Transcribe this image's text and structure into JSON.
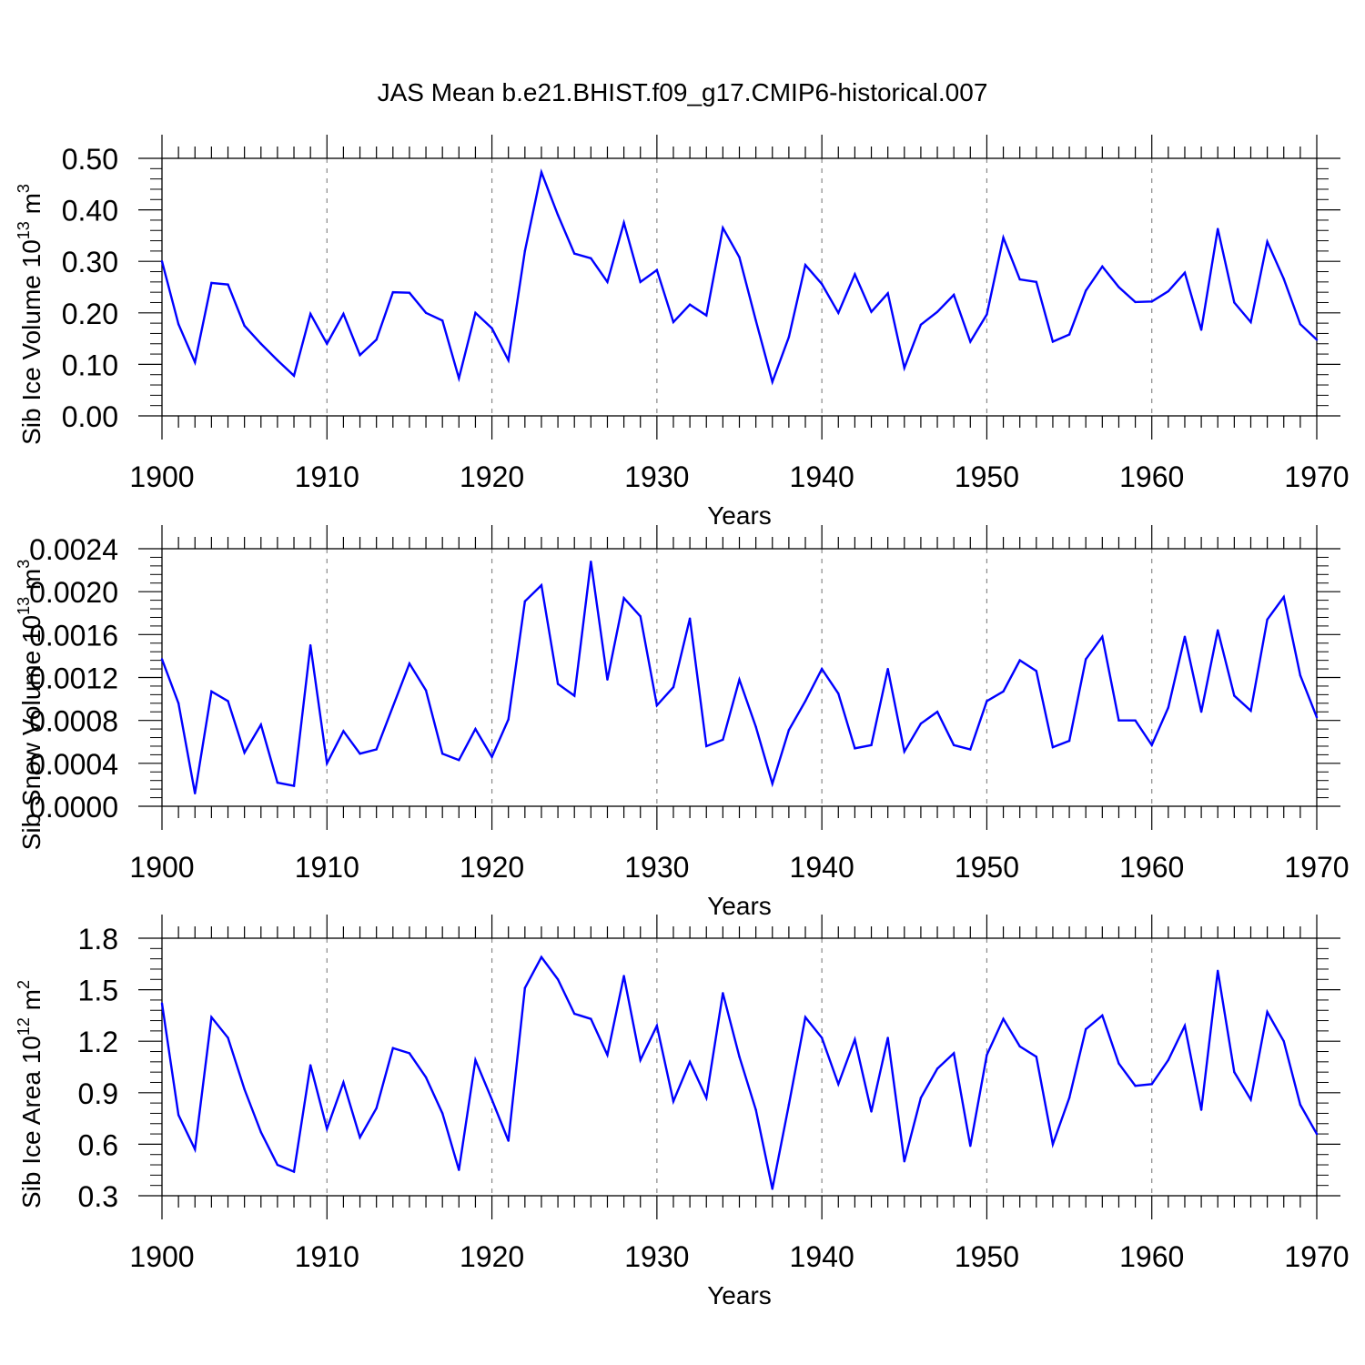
{
  "title": "JAS Mean b.e21.BHIST.f09_g17.CMIP6-historical.007",
  "colors": {
    "line": "#0000ff",
    "axis": "#000000",
    "grid": "#888888",
    "background": "#ffffff"
  },
  "chart_data": [
    {
      "type": "line",
      "ylabel_main": "Sib Ice Volume 10",
      "ylabel_exp": "13",
      "ylabel_unit": " m",
      "ylabel_unit_exp": "3",
      "xlabel": "Years",
      "xlim": [
        1900,
        1970
      ],
      "ylim": [
        0.0,
        0.5
      ],
      "yticks": [
        0.0,
        0.1,
        0.2,
        0.3,
        0.4,
        0.5
      ],
      "yticklabels": [
        "0.00",
        "0.10",
        "0.20",
        "0.30",
        "0.40",
        "0.50"
      ],
      "xticks": [
        1900,
        1910,
        1920,
        1930,
        1940,
        1950,
        1960,
        1970
      ],
      "xticklabels": [
        "1900",
        "1910",
        "1920",
        "1930",
        "1940",
        "1950",
        "1960",
        "1970"
      ],
      "grid_x": [
        1910,
        1920,
        1930,
        1940,
        1950,
        1960
      ],
      "series": [
        {
          "name": "Sib Ice Volume",
          "x_start": 1900,
          "values": [
            0.3,
            0.178,
            0.104,
            0.258,
            0.255,
            0.175,
            0.14,
            0.108,
            0.078,
            0.198,
            0.14,
            0.198,
            0.118,
            0.148,
            0.24,
            0.239,
            0.2,
            0.185,
            0.073,
            0.2,
            0.17,
            0.108,
            0.32,
            0.473,
            0.39,
            0.315,
            0.306,
            0.26,
            0.375,
            0.26,
            0.283,
            0.182,
            0.216,
            0.195,
            0.365,
            0.308,
            0.185,
            0.066,
            0.153,
            0.293,
            0.256,
            0.2,
            0.275,
            0.202,
            0.238,
            0.093,
            0.177,
            0.202,
            0.235,
            0.144,
            0.197,
            0.346,
            0.265,
            0.26,
            0.144,
            0.158,
            0.243,
            0.29,
            0.25,
            0.221,
            0.222,
            0.242,
            0.278,
            0.167,
            0.363,
            0.22,
            0.182,
            0.338,
            0.266,
            0.178,
            0.148
          ]
        }
      ]
    },
    {
      "type": "line",
      "ylabel_main": "Sib Snow Volume 10",
      "ylabel_exp": "13",
      "ylabel_unit": " m",
      "ylabel_unit_exp": "3",
      "xlabel": "Years",
      "xlim": [
        1900,
        1970
      ],
      "ylim": [
        0.0,
        0.0024
      ],
      "yticks": [
        0.0,
        0.0004,
        0.0008,
        0.0012,
        0.0016,
        0.002,
        0.0024
      ],
      "yticklabels": [
        "0.0000",
        "0.0004",
        "0.0008",
        "0.0012",
        "0.0016",
        "0.0020",
        "0.0024"
      ],
      "xticks": [
        1900,
        1910,
        1920,
        1930,
        1940,
        1950,
        1960,
        1970
      ],
      "xticklabels": [
        "1900",
        "1910",
        "1920",
        "1930",
        "1940",
        "1950",
        "1960",
        "1970"
      ],
      "grid_x": [
        1910,
        1920,
        1930,
        1940,
        1950,
        1960
      ],
      "series": [
        {
          "name": "Sib Snow Volume",
          "x_start": 1900,
          "values": [
            0.00137,
            0.00096,
            0.00012,
            0.00107,
            0.00098,
            0.0005,
            0.00076,
            0.00022,
            0.00019,
            0.0015,
            0.0004,
            0.0007,
            0.00049,
            0.00053,
            0.00093,
            0.00133,
            0.00108,
            0.00049,
            0.00043,
            0.00072,
            0.00046,
            0.00081,
            0.00191,
            0.00206,
            0.00114,
            0.00103,
            0.00228,
            0.00118,
            0.00194,
            0.00177,
            0.00094,
            0.00111,
            0.00175,
            0.00056,
            0.00062,
            0.00118,
            0.00074,
            0.00021,
            0.00071,
            0.00098,
            0.00128,
            0.00105,
            0.00054,
            0.00057,
            0.00128,
            0.00051,
            0.00077,
            0.00088,
            0.00057,
            0.00053,
            0.00098,
            0.00107,
            0.00136,
            0.00126,
            0.00055,
            0.00061,
            0.00137,
            0.00158,
            0.0008,
            0.0008,
            0.00057,
            0.00092,
            0.00158,
            0.00088,
            0.00164,
            0.00103,
            0.00089,
            0.00174,
            0.00195,
            0.00122,
            0.00083
          ]
        }
      ]
    },
    {
      "type": "line",
      "ylabel_main": "Sib Ice Area 10",
      "ylabel_exp": "12",
      "ylabel_unit": " m",
      "ylabel_unit_exp": "2",
      "xlabel": "Years",
      "xlim": [
        1900,
        1970
      ],
      "ylim": [
        0.3,
        1.8
      ],
      "yticks": [
        0.3,
        0.6,
        0.9,
        1.2,
        1.5,
        1.8
      ],
      "yticklabels": [
        "0.3",
        "0.6",
        "0.9",
        "1.2",
        "1.5",
        "1.8"
      ],
      "xticks": [
        1900,
        1910,
        1920,
        1930,
        1940,
        1950,
        1960,
        1970
      ],
      "xticklabels": [
        "1900",
        "1910",
        "1920",
        "1930",
        "1940",
        "1950",
        "1960",
        "1970"
      ],
      "grid_x": [
        1910,
        1920,
        1930,
        1940,
        1950,
        1960
      ],
      "series": [
        {
          "name": "Sib Ice Area",
          "x_start": 1900,
          "values": [
            1.42,
            0.77,
            0.57,
            1.34,
            1.22,
            0.92,
            0.67,
            0.48,
            0.44,
            1.06,
            0.69,
            0.96,
            0.64,
            0.81,
            1.16,
            1.13,
            0.99,
            0.78,
            0.45,
            1.09,
            0.86,
            0.62,
            1.51,
            1.69,
            1.56,
            1.36,
            1.33,
            1.12,
            1.58,
            1.09,
            1.29,
            0.85,
            1.08,
            0.87,
            1.48,
            1.11,
            0.8,
            0.34,
            0.83,
            1.34,
            1.22,
            0.95,
            1.21,
            0.79,
            1.22,
            0.5,
            0.87,
            1.04,
            1.13,
            0.59,
            1.12,
            1.33,
            1.17,
            1.11,
            0.6,
            0.87,
            1.27,
            1.35,
            1.07,
            0.94,
            0.95,
            1.09,
            1.29,
            0.8,
            1.61,
            1.02,
            0.86,
            1.37,
            1.2,
            0.83,
            0.66
          ]
        }
      ]
    }
  ]
}
